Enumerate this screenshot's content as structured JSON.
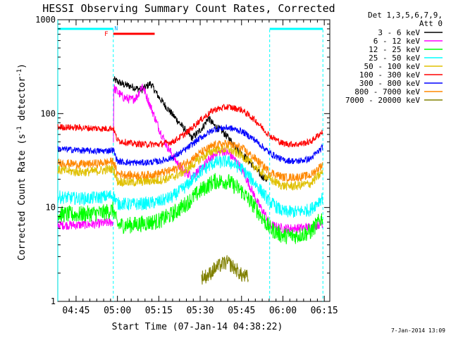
{
  "chart_data": {
    "type": "line",
    "title": "HESSI Observing Summary Count Rates, Corrected",
    "xlabel": "Start Time (07-Jan-14 04:38:22)",
    "ylabel_main": "Corrected Count Rate (s",
    "ylabel_sup1": "-1",
    "ylabel_mid": " detector",
    "ylabel_sup2": "-1",
    "ylabel_end": ")",
    "yscale": "log",
    "ylim": [
      1,
      1000
    ],
    "xlim_minutes": [
      278.37,
      377.0
    ],
    "x_ticks": [
      {
        "minutes": 285,
        "label": "04:45"
      },
      {
        "minutes": 300,
        "label": "05:00"
      },
      {
        "minutes": 315,
        "label": "05:15"
      },
      {
        "minutes": 330,
        "label": "05:30"
      },
      {
        "minutes": 345,
        "label": "05:45"
      },
      {
        "minutes": 360,
        "label": "06:00"
      },
      {
        "minutes": 375,
        "label": "06:15"
      }
    ],
    "y_ticks": [
      {
        "value": 1,
        "label": "1"
      },
      {
        "value": 10,
        "label": "10"
      },
      {
        "value": 100,
        "label": "100"
      },
      {
        "value": 1000,
        "label": "1000"
      }
    ],
    "legend_header": [
      "Det 1,3,5,6,7,9,",
      "Att 0"
    ],
    "legend_position": "outside-right",
    "footer_date": "7-Jan-2014 13:09",
    "markers": {
      "F_label": "F",
      "N_label": "N",
      "flare_bar": {
        "start_min": 298.5,
        "end_min": 313.5,
        "color": "#ff0000"
      },
      "night_bars": [
        {
          "start_min": 278.4,
          "end_min": 298.5,
          "color": "#00ffff"
        },
        {
          "start_min": 355.2,
          "end_min": 374.5,
          "color": "#00ffff"
        }
      ],
      "boundary_lines": [
        298.5,
        355.2,
        374.5
      ],
      "left_edge_line": 278.4
    },
    "series": [
      {
        "name": "3 - 6 keV",
        "color": "#000000",
        "x": [
          298.6,
          300,
          302,
          305,
          307,
          309,
          312,
          315,
          318,
          321,
          324,
          327,
          329,
          331,
          333,
          335,
          338,
          341,
          344,
          347,
          350,
          352,
          354,
          355.1
        ],
        "y": [
          230,
          220,
          205,
          195,
          185,
          180,
          210,
          150,
          115,
          90,
          70,
          55,
          62,
          72,
          90,
          75,
          65,
          52,
          40,
          33,
          26,
          22,
          20,
          20
        ]
      },
      {
        "name": "6 - 12 keV",
        "color": "#ff00ff",
        "x": [
          278.4,
          285,
          290,
          295,
          298.5,
          298.6,
          300,
          302,
          305,
          307,
          309,
          312,
          315,
          318,
          321,
          324,
          327,
          330,
          333,
          336,
          339,
          342,
          345,
          348,
          351,
          354,
          355.2,
          360,
          365,
          370,
          374.5
        ],
        "y": [
          6.5,
          6.5,
          6.6,
          6.8,
          7,
          190,
          170,
          150,
          140,
          150,
          200,
          120,
          70,
          45,
          32,
          24,
          22,
          25,
          32,
          38,
          40,
          34,
          26,
          17,
          11,
          8,
          6.5,
          6,
          6,
          6.2,
          6.8
        ]
      },
      {
        "name": "12 - 25 keV",
        "color": "#00ff00",
        "x": [
          278.4,
          285,
          290,
          295,
          298.5,
          300,
          305,
          310,
          315,
          320,
          325,
          330,
          335,
          340,
          345,
          350,
          355.2,
          360,
          365,
          370,
          374.5
        ],
        "y": [
          8.5,
          8.4,
          8.6,
          8.8,
          9.5,
          6.5,
          6.5,
          6.8,
          7.2,
          8.5,
          11,
          15,
          19,
          19,
          15,
          10,
          6,
          5,
          5,
          5.5,
          8
        ]
      },
      {
        "name": "25 - 50 keV",
        "color": "#00ffff",
        "x": [
          278.4,
          285,
          290,
          295,
          298.5,
          300,
          305,
          310,
          315,
          320,
          325,
          330,
          335,
          340,
          345,
          350,
          355.2,
          360,
          365,
          370,
          374.5
        ],
        "y": [
          13,
          12.5,
          12.5,
          13,
          13.5,
          11,
          10.8,
          11,
          11.5,
          13,
          17,
          24,
          30,
          31,
          26,
          18,
          11.5,
          9,
          9,
          9.5,
          13
        ]
      },
      {
        "name": "50 - 100 keV",
        "color": "#e0c000",
        "x": [
          278.4,
          285,
          290,
          295,
          298.5,
          300,
          305,
          310,
          315,
          320,
          325,
          330,
          335,
          340,
          345,
          350,
          355.2,
          360,
          365,
          370,
          374.5
        ],
        "y": [
          25,
          24,
          24,
          25,
          26,
          19,
          18.5,
          19,
          19.5,
          21,
          25,
          33,
          41,
          42,
          36,
          27,
          20,
          17,
          17,
          18,
          24
        ]
      },
      {
        "name": "100 - 300 keV",
        "color": "#ff0000",
        "x": [
          278.4,
          285,
          290,
          295,
          298.5,
          300,
          305,
          310,
          315,
          320,
          325,
          330,
          335,
          340,
          345,
          350,
          355.2,
          360,
          365,
          370,
          374.5
        ],
        "y": [
          72,
          71,
          70,
          69,
          70,
          52,
          48,
          47,
          47,
          50,
          62,
          85,
          110,
          118,
          110,
          85,
          58,
          48,
          47,
          50,
          65
        ]
      },
      {
        "name": "300 - 800 keV",
        "color": "#0000ff",
        "x": [
          278.4,
          285,
          290,
          295,
          298.5,
          300,
          305,
          310,
          315,
          320,
          325,
          330,
          335,
          340,
          345,
          350,
          355.2,
          360,
          365,
          370,
          374.5
        ],
        "y": [
          42,
          41,
          40,
          40,
          41,
          31,
          30,
          30,
          31,
          34,
          42,
          55,
          68,
          71,
          65,
          52,
          38,
          32,
          31,
          33,
          44
        ]
      },
      {
        "name": "800 - 7000 keV",
        "color": "#ff8800",
        "x": [
          278.4,
          285,
          290,
          295,
          298.5,
          300,
          305,
          310,
          315,
          320,
          325,
          330,
          335,
          340,
          345,
          350,
          355.2,
          360,
          365,
          370,
          374.5
        ],
        "y": [
          30,
          29,
          29,
          30,
          31,
          23,
          22,
          22,
          23,
          25,
          30,
          38,
          46,
          48,
          43,
          33,
          24,
          21,
          21,
          22,
          29
        ]
      },
      {
        "name": "7000 - 20000 keV",
        "color": "#808000",
        "x": [
          330.5,
          333,
          335,
          338,
          340,
          343,
          345,
          347.5
        ],
        "y": [
          1.8,
          1.9,
          2.2,
          2.5,
          2.6,
          2.2,
          1.9,
          1.8
        ]
      }
    ]
  }
}
